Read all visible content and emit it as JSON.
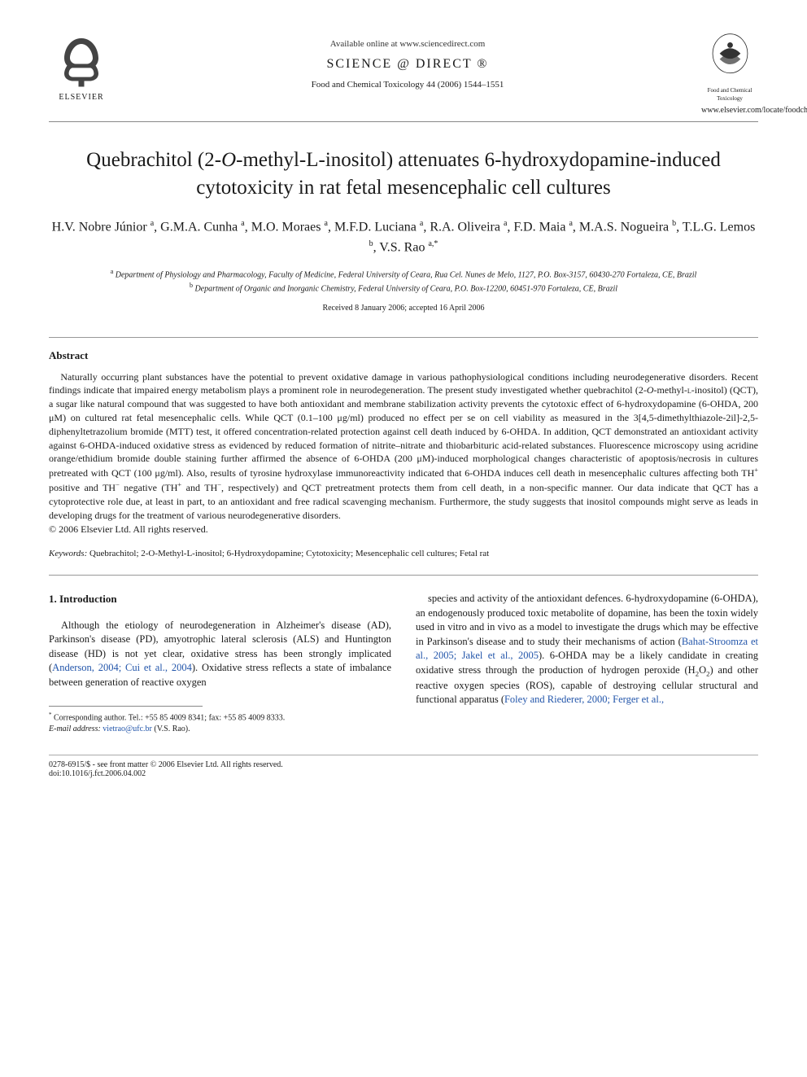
{
  "header": {
    "available_text": "Available online at www.sciencedirect.com",
    "science_direct_prefix": "SCIENCE",
    "science_direct_suffix": "DIRECT",
    "journal_ref": "Food and Chemical Toxicology 44 (2006) 1544–1551",
    "publisher_name": "ELSEVIER",
    "journal_caption_1": "Food and Chemical",
    "journal_caption_2": "Toxicology",
    "locate_url": "www.elsevier.com/locate/foodchemtox"
  },
  "title_parts": {
    "pre": "Quebrachitol (2-",
    "o_ital": "O",
    "mid": "-methyl-",
    "l_small": "L",
    "post": "-inositol) attenuates 6-hydroxydopamine-induced cytotoxicity in rat fetal mesencephalic cell cultures"
  },
  "authors_html": "H.V. Nobre Júnior <sup>a</sup>, G.M.A. Cunha <sup>a</sup>, M.O. Moraes <sup>a</sup>, M.F.D. Luciana <sup>a</sup>, R.A. Oliveira <sup>a</sup>, F.D. Maia <sup>a</sup>, M.A.S. Nogueira <sup>b</sup>, T.L.G. Lemos <sup>b</sup>, V.S. Rao <sup>a,*</sup>",
  "affiliations": {
    "a": "Department of Physiology and Pharmacology, Faculty of Medicine, Federal University of Ceara, Rua Cel. Nunes de Melo, 1127, P.O. Box-3157, 60430-270 Fortaleza, CE, Brazil",
    "b": "Department of Organic and Inorganic Chemistry, Federal University of Ceara, P.O. Box-12200, 60451-970 Fortaleza, CE, Brazil"
  },
  "dates": "Received 8 January 2006; accepted 16 April 2006",
  "abstract": {
    "heading": "Abstract",
    "text_html": "Naturally occurring plant substances have the potential to prevent oxidative damage in various pathophysiological conditions including neurodegenerative disorders. Recent findings indicate that impaired energy metabolism plays a prominent role in neurodegeneration. The present study investigated whether quebrachitol (2-<i>O</i>-methyl-<span style='font-variant:small-caps'>l</span>-inositol) (QCT), a sugar like natural compound that was suggested to have both antioxidant and membrane stabilization activity prevents the cytotoxic effect of 6-hydroxydopamine (6-OHDA, 200 μM) on cultured rat fetal mesencephalic cells. While QCT (0.1–100 μg/ml) produced no effect per se on cell viability as measured in the 3[4,5-dimethylthiazole-2il]-2,5-diphenyltetrazolium bromide (MTT) test, it offered concentration-related protection against cell death induced by 6-OHDA. In addition, QCT demonstrated an antioxidant activity against 6-OHDA-induced oxidative stress as evidenced by reduced formation of nitrite–nitrate and thiobarbituric acid-related substances. Fluorescence microscopy using acridine orange/ethidium bromide double staining further affirmed the absence of 6-OHDA (200 μM)-induced morphological changes characteristic of apoptosis/necrosis in cultures pretreated with QCT (100 μg/ml). Also, results of tyrosine hydroxylase immunoreactivity indicated that 6-OHDA induces cell death in mesencephalic cultures affecting both TH<sup>+</sup> positive and TH<sup>−</sup> negative (TH<sup>+</sup> and TH<sup>−</sup>, respectively) and QCT pretreatment protects them from cell death, in a non-specific manner. Our data indicate that QCT has a cytoprotective role due, at least in part, to an antioxidant and free radical scavenging mechanism. Furthermore, the study suggests that inositol compounds might serve as leads in developing drugs for the treatment of various neurodegenerative disorders.",
    "copyright": "© 2006 Elsevier Ltd. All rights reserved."
  },
  "keywords": {
    "label": "Keywords:",
    "text": " Quebrachitol; 2-O-Methyl-L-inositol; 6-Hydroxydopamine; Cytotoxicity; Mesencephalic cell cultures; Fetal rat"
  },
  "introduction": {
    "heading": "1. Introduction",
    "col1_html": "Although the etiology of neurodegeneration in Alzheimer's disease (AD), Parkinson's disease (PD), amyotrophic lateral sclerosis (ALS) and Huntington disease (HD) is not yet clear, oxidative stress has been strongly implicated (<span class='cite'>Anderson, 2004; Cui et al., 2004</span>). Oxidative stress reflects a state of imbalance between generation of reactive oxygen",
    "col2_html": "species and activity of the antioxidant defences. 6-hydroxydopamine (6-OHDA), an endogenously produced toxic metabolite of dopamine, has been the toxin widely used in vitro and in vivo as a model to investigate the drugs which may be effective in Parkinson's disease and to study their mechanisms of action (<span class='cite'>Bahat-Stroomza et al., 2005; Jakel et al., 2005</span>). 6-OHDA may be a likely candidate in creating oxidative stress through the production of hydrogen peroxide (H<sub>2</sub>O<sub>2</sub>) and other reactive oxygen species (ROS), capable of destroying cellular structural and functional apparatus (<span class='cite'>Foley and Riederer, 2000; Ferger et al.,</span>"
  },
  "footnote": {
    "corr": "Corresponding author. Tel.: +55 85 4009 8341; fax: +55 85 4009 8333.",
    "email_label": "E-mail address:",
    "email": "vietrao@ufc.br",
    "email_who": "(V.S. Rao)."
  },
  "bottom": {
    "left_line1": "0278-6915/$ - see front matter © 2006 Elsevier Ltd. All rights reserved.",
    "left_line2": "doi:10.1016/j.fct.2006.04.002"
  },
  "colors": {
    "text": "#1a1a1a",
    "cite": "#2255aa",
    "rule": "#888888"
  }
}
